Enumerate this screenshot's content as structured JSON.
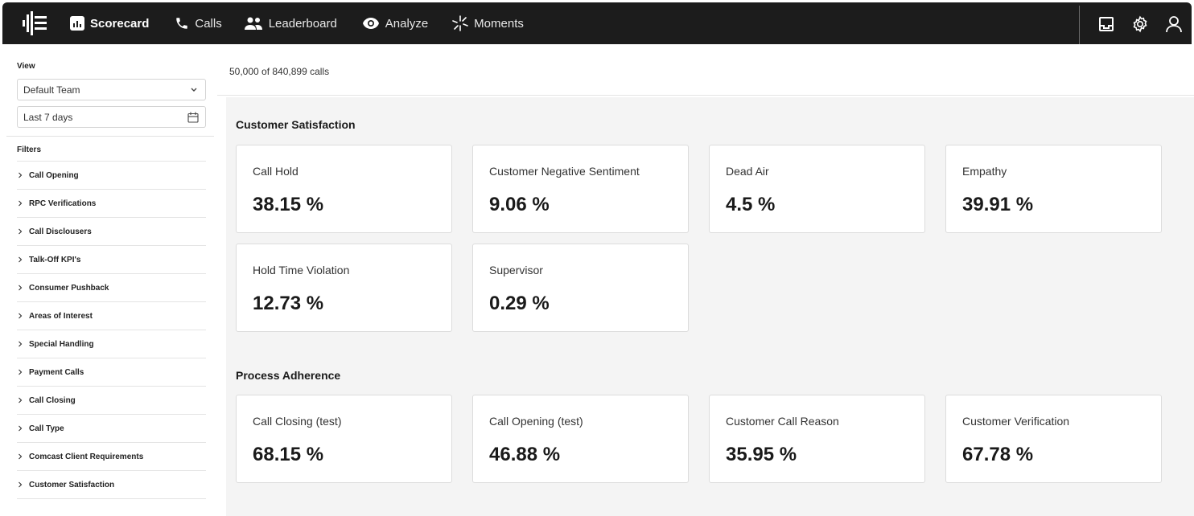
{
  "nav": {
    "items": [
      {
        "label": "Scorecard",
        "icon": "scorecard-icon",
        "active": true
      },
      {
        "label": "Calls",
        "icon": "phone-icon"
      },
      {
        "label": "Leaderboard",
        "icon": "people-icon"
      },
      {
        "label": "Analyze",
        "icon": "eye-icon"
      },
      {
        "label": "Moments",
        "icon": "sparkle-icon"
      }
    ],
    "right_icons": [
      "inbox-icon",
      "gear-icon",
      "user-icon"
    ]
  },
  "sidebar": {
    "view_label": "View",
    "team_select": "Default Team",
    "date_select": "Last 7 days",
    "filters_label": "Filters",
    "filters": [
      "Call Opening",
      "RPC Verifications",
      "Call Disclousers",
      "Talk-Off KPI's",
      "Consumer Pushback",
      "Areas of Interest",
      "Special Handling",
      "Payment Calls",
      "Call Closing",
      "Call Type",
      "Comcast Client Requirements",
      "Customer Satisfaction"
    ]
  },
  "main": {
    "call_count": "50,000 of 840,899 calls",
    "sections": [
      {
        "title": "Customer Satisfaction",
        "cards": [
          {
            "label": "Call Hold",
            "value": "38.15 %"
          },
          {
            "label": "Customer Negative Sentiment",
            "value": "9.06 %"
          },
          {
            "label": "Dead Air",
            "value": "4.5 %"
          },
          {
            "label": "Empathy",
            "value": "39.91 %"
          },
          {
            "label": "Hold Time Violation",
            "value": "12.73 %"
          },
          {
            "label": "Supervisor",
            "value": "0.29 %"
          }
        ]
      },
      {
        "title": "Process Adherence",
        "cards": [
          {
            "label": "Call Closing (test)",
            "value": "68.15 %"
          },
          {
            "label": "Call Opening (test)",
            "value": "46.88 %"
          },
          {
            "label": "Customer Call Reason",
            "value": "35.95 %"
          },
          {
            "label": "Customer Verification",
            "value": "67.78 %"
          }
        ]
      }
    ]
  },
  "colors": {
    "topbar": "#1c1c1c",
    "content_bg": "#f4f4f4",
    "card_border": "#dcdcdc"
  }
}
